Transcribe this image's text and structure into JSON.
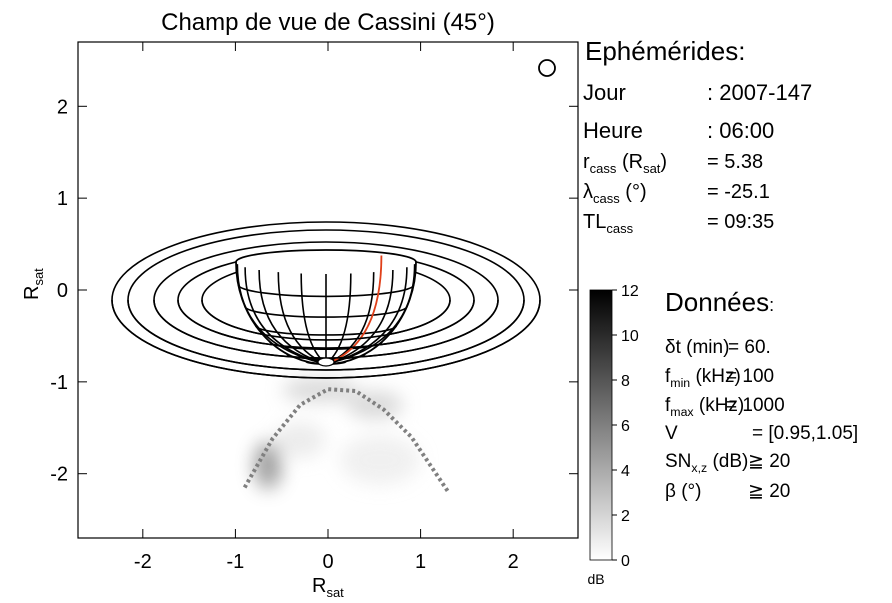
{
  "chart_data": {
    "type": "line",
    "title": "Champ de vue de Cassini (45°)",
    "xlabel": {
      "t": "R",
      "sub": "sat"
    },
    "ylabel": {
      "t": "R",
      "sub": "sat"
    },
    "xlim": [
      -2.7,
      2.7
    ],
    "ylim": [
      -2.7,
      2.7
    ],
    "xticks": [
      -2,
      -1,
      0,
      1,
      2
    ],
    "yticks": [
      -2,
      -1,
      0,
      1,
      2
    ],
    "x": [
      -0.9,
      -0.6,
      -0.3,
      0,
      0.3,
      0.6,
      0.9,
      1.3
    ],
    "series": [
      {
        "color": "#808080",
        "values": [
          -2.15,
          -1.62,
          -1.25,
          -1.08,
          -1.1,
          -1.3,
          -1.6,
          -2.2
        ]
      }
    ],
    "colorbar": {
      "lim": [
        0,
        12
      ],
      "ticks": [
        0,
        2,
        4,
        6,
        8,
        10,
        12
      ],
      "label": "dB"
    }
  },
  "ephemerides": {
    "title": "Ephémérides:",
    "rows": [
      {
        "label": [
          {
            "t": "Jour"
          }
        ],
        "value": ": 2007-147"
      },
      {
        "label": [
          {
            "t": "Heure"
          }
        ],
        "value": ": 06:00"
      },
      {
        "label": [
          {
            "t": "r"
          },
          {
            "sub": "cass"
          },
          {
            "t": " (R"
          },
          {
            "sub": "sat"
          },
          {
            "t": ")"
          }
        ],
        "value": "= 5.38"
      },
      {
        "label": [
          {
            "t": "λ"
          },
          {
            "sub": "cass"
          },
          {
            "t": " (°)"
          }
        ],
        "value": "= -25.1"
      },
      {
        "label": [
          {
            "t": "TL"
          },
          {
            "sub": "cass"
          }
        ],
        "value": "= 09:35"
      }
    ]
  },
  "donnees": {
    "title": "Données",
    "title_colon": ":",
    "color": "#a0a0a0",
    "rows": [
      {
        "label": [
          {
            "t": "δt (min)"
          }
        ],
        "value": "= 60.",
        "color": "#a0a0a0"
      },
      {
        "label": [
          {
            "t": "f"
          },
          {
            "sub": "min"
          },
          {
            "t": " (kHz)"
          }
        ],
        "value": "= 100",
        "color": "#1a2fa0"
      },
      {
        "label": [
          {
            "t": "f"
          },
          {
            "sub": "max"
          },
          {
            "t": " (kHz)"
          }
        ],
        "value": "= 1000",
        "color": "#1e90e8"
      },
      {
        "label": [
          {
            "t": "V"
          }
        ],
        "value": "= [0.95,1.05]",
        "color": "#a0a0a0"
      },
      {
        "label": [
          {
            "t": "SN"
          },
          {
            "sub": "x,z"
          },
          {
            "t": " (dB)"
          }
        ],
        "value": "≧ 20",
        "color": "#a0a0a0"
      },
      {
        "label": [
          {
            "t": "β (°)"
          }
        ],
        "value": "≧ 20",
        "color": "#a0a0a0"
      }
    ]
  }
}
